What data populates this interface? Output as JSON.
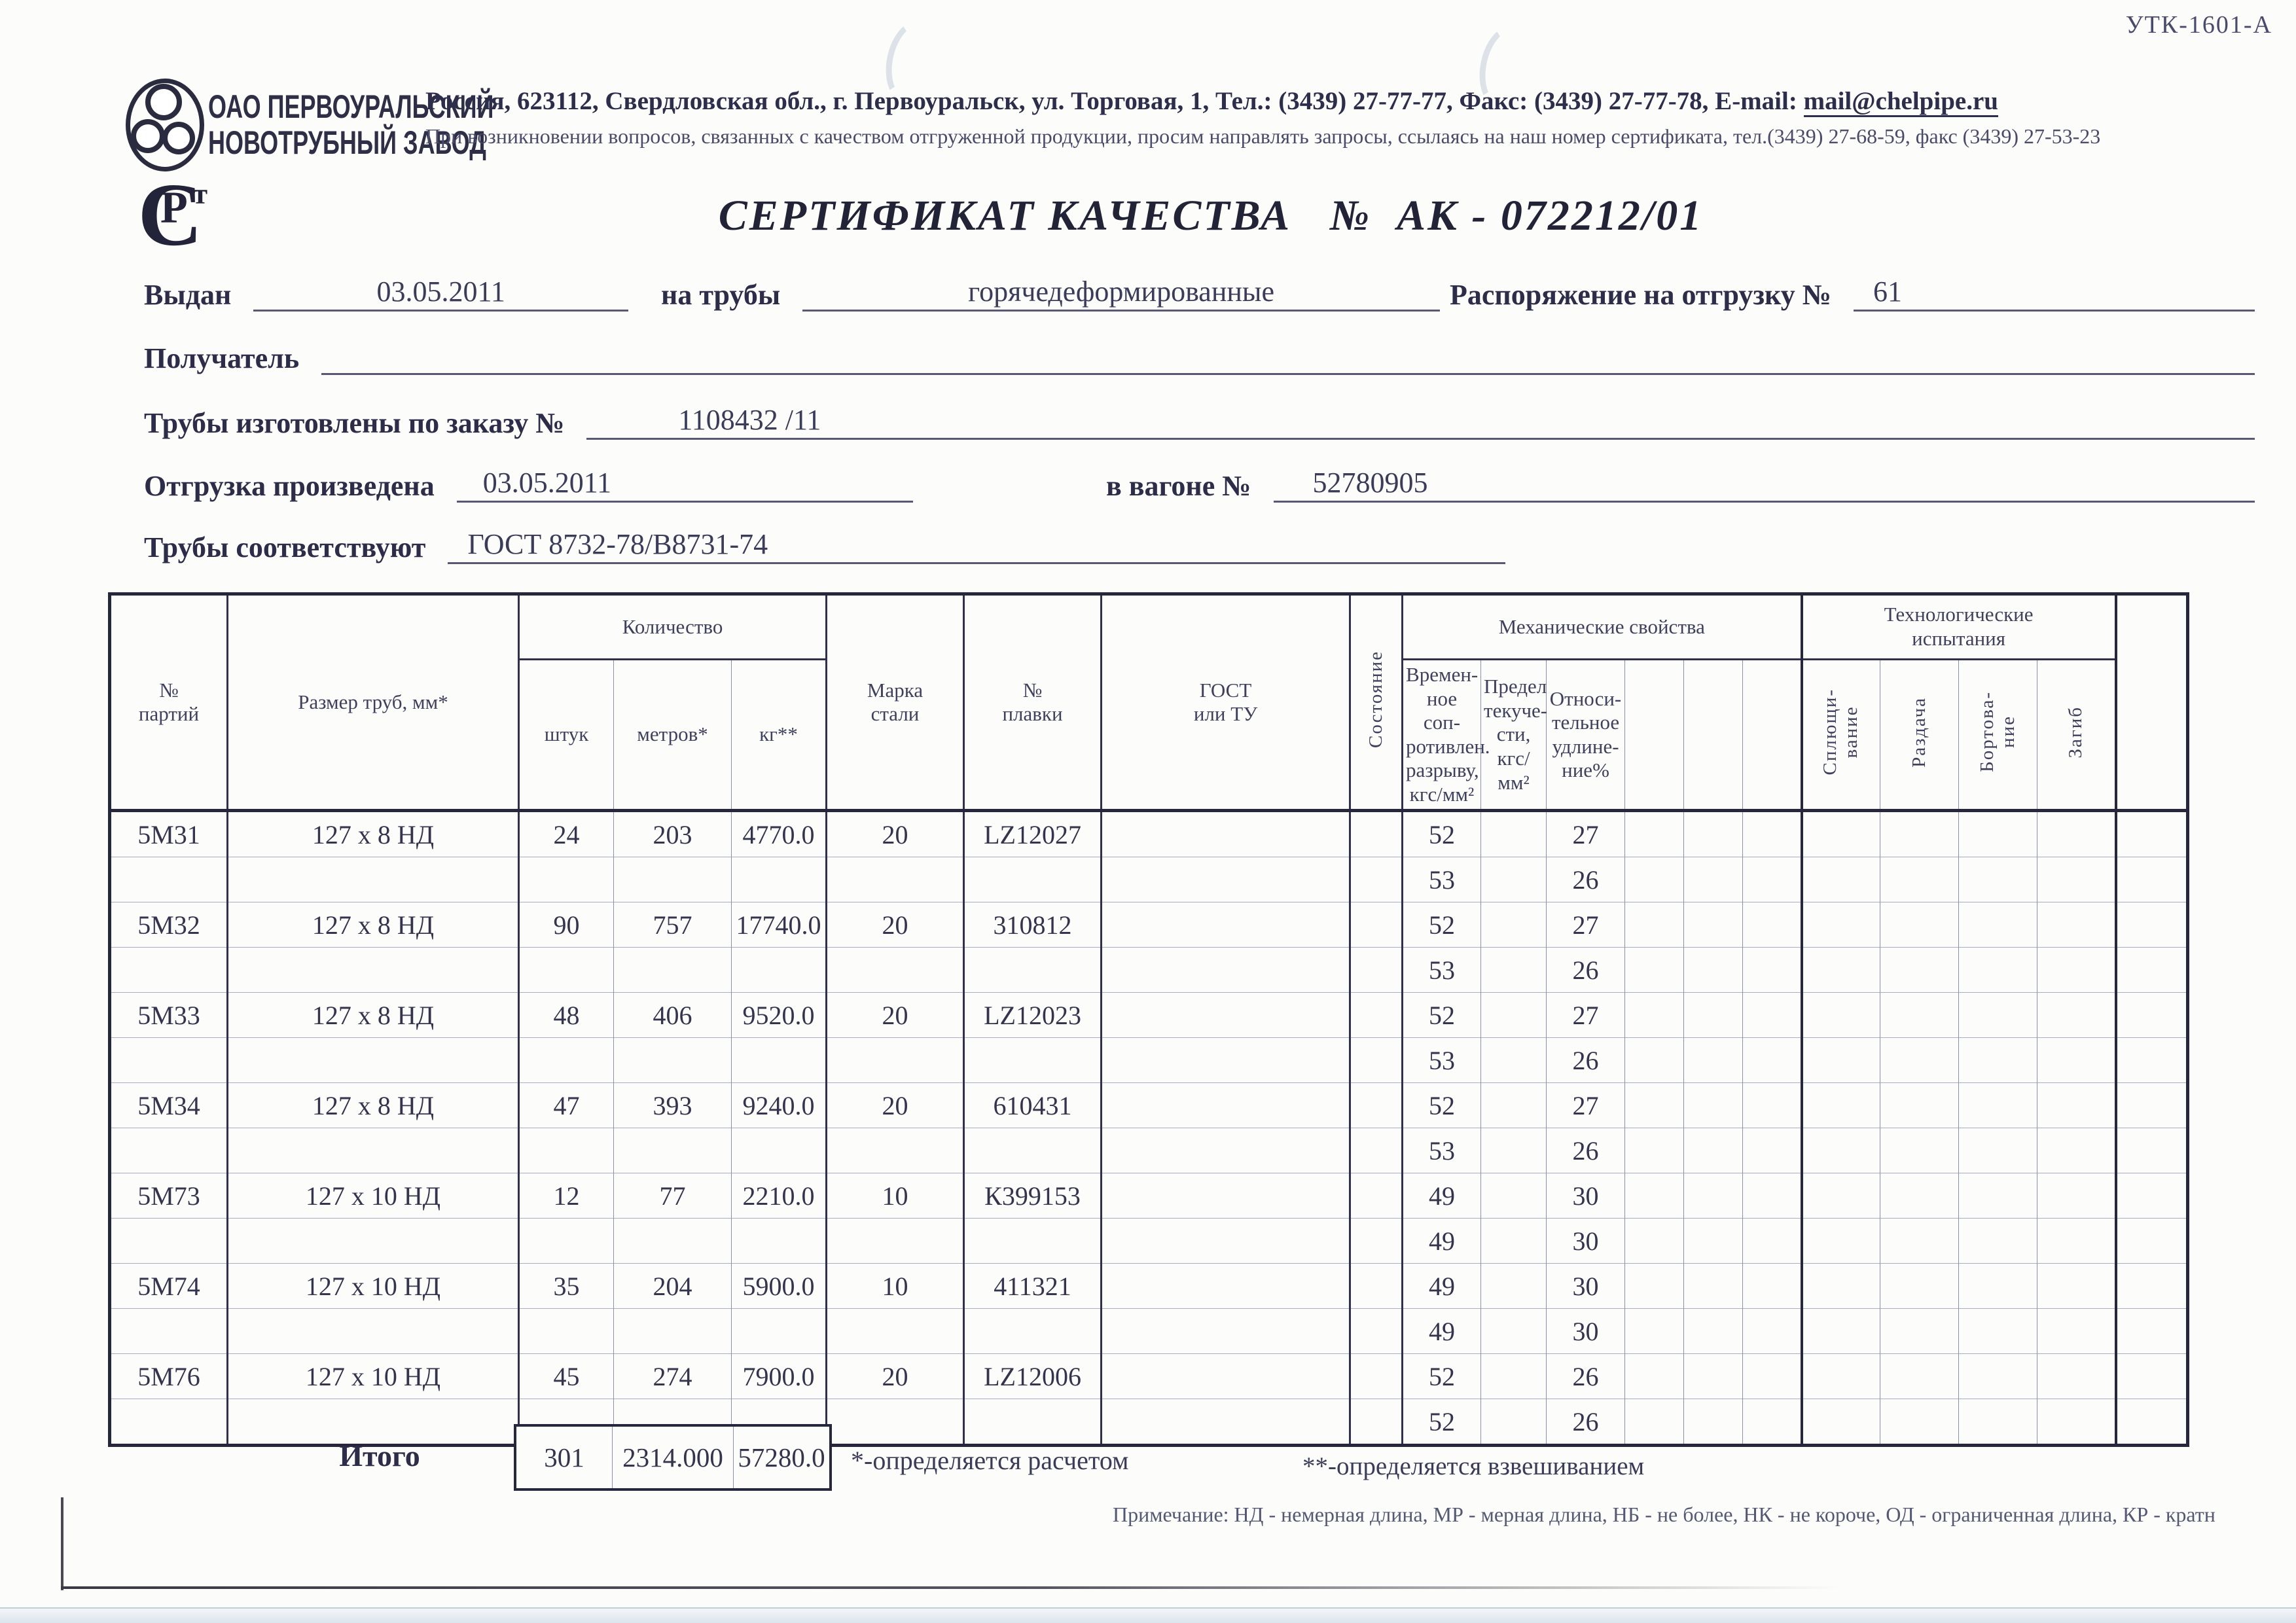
{
  "form_code": "УТК-1601-А",
  "company": {
    "name_line1": "ОАО ПЕРВОУРАЛЬСКИЙ",
    "name_line2": "НОВОТРУБНЫЙ ЗАВОД",
    "address_pre": "Россия, 623112, Свердловская обл., г. Первоуральск, ул. Торговая, 1, Тел.: (3439) 27-77-77, Факс: (3439) 27-77-78, E-mail: ",
    "email": "mail@chelpipe.ru",
    "quality_note": "При возникновении вопросов, связанных с качеством отгруженной продукции, просим направлять запросы, ссылаясь на наш номер сертификата, тел.(3439) 27-68-59, факс (3439) 27-53-23"
  },
  "logos": {
    "rst_c": "С",
    "rst_r": "Р",
    "rst_t": "т"
  },
  "title": {
    "text": "СЕРТИФИКАТ КАЧЕСТВА",
    "number_sign": "№",
    "number": "АК - 072212/01"
  },
  "fields": {
    "issued_label": "Выдан",
    "issued_value": "03.05.2011",
    "pipes_label": "на трубы",
    "pipes_value": "горячедеформированные",
    "shipment_order_label": "Распоряжение на отгрузку №",
    "shipment_order_value": "61",
    "receiver_label": "Получатель",
    "receiver_value": "",
    "made_by_order_label": "Трубы изготовлены по заказу №",
    "made_by_order_value": "1108432  /11",
    "shipped_label": "Отгрузка произведена",
    "shipped_value": "03.05.2011",
    "wagon_label": "в вагоне №",
    "wagon_value": "52780905",
    "conform_label": "Трубы соответствуют",
    "conform_value": "ГОСТ 8732-78/В8731-74"
  },
  "table": {
    "header": {
      "party": "№\nпартий",
      "size": "Размер труб, мм*",
      "qty_group": "Количество",
      "qty_pcs": "штук",
      "qty_m": "метров*",
      "qty_kg": "кг**",
      "grade": "Марка\nстали",
      "heat": "№\nплавки",
      "gost": "ГОСТ\nили ТУ",
      "state": "Состояние",
      "mech_group": "Механические свойства",
      "tensile": "Времен-\nное соп-\nротивлен.\nразрыву,\nкгс/мм²",
      "yield": "Предел\nтекуче-\nсти,\nкгс/мм²",
      "elong": "Относи-\nтельное\nудлине-\nние%",
      "tech_group": "Технологические\nиспытания",
      "flatten": "Сплющи-\nвание",
      "expand": "Раздача",
      "flange": "Бортова-\nние",
      "bend": "Загиб"
    },
    "rows": [
      [
        "5М31",
        "127 x 8 НД",
        "24",
        "203",
        "4770.0",
        "20",
        "LZ12027",
        "",
        "",
        "52",
        "",
        "27",
        "",
        "",
        "",
        "",
        "",
        "",
        "",
        ""
      ],
      [
        "",
        "",
        "",
        "",
        "",
        "",
        "",
        "",
        "",
        "53",
        "",
        "26",
        "",
        "",
        "",
        "",
        "",
        "",
        "",
        ""
      ],
      [
        "5М32",
        "127 x 8 НД",
        "90",
        "757",
        "17740.0",
        "20",
        "310812",
        "",
        "",
        "52",
        "",
        "27",
        "",
        "",
        "",
        "",
        "",
        "",
        "",
        ""
      ],
      [
        "",
        "",
        "",
        "",
        "",
        "",
        "",
        "",
        "",
        "53",
        "",
        "26",
        "",
        "",
        "",
        "",
        "",
        "",
        "",
        ""
      ],
      [
        "5М33",
        "127 x 8 НД",
        "48",
        "406",
        "9520.0",
        "20",
        "LZ12023",
        "",
        "",
        "52",
        "",
        "27",
        "",
        "",
        "",
        "",
        "",
        "",
        "",
        ""
      ],
      [
        "",
        "",
        "",
        "",
        "",
        "",
        "",
        "",
        "",
        "53",
        "",
        "26",
        "",
        "",
        "",
        "",
        "",
        "",
        "",
        ""
      ],
      [
        "5М34",
        "127 x 8 НД",
        "47",
        "393",
        "9240.0",
        "20",
        "610431",
        "",
        "",
        "52",
        "",
        "27",
        "",
        "",
        "",
        "",
        "",
        "",
        "",
        ""
      ],
      [
        "",
        "",
        "",
        "",
        "",
        "",
        "",
        "",
        "",
        "53",
        "",
        "26",
        "",
        "",
        "",
        "",
        "",
        "",
        "",
        ""
      ],
      [
        "5М73",
        "127 x 10 НД",
        "12",
        "77",
        "2210.0",
        "10",
        "К399153",
        "",
        "",
        "49",
        "",
        "30",
        "",
        "",
        "",
        "",
        "",
        "",
        "",
        ""
      ],
      [
        "",
        "",
        "",
        "",
        "",
        "",
        "",
        "",
        "",
        "49",
        "",
        "30",
        "",
        "",
        "",
        "",
        "",
        "",
        "",
        ""
      ],
      [
        "5М74",
        "127 x 10 НД",
        "35",
        "204",
        "5900.0",
        "10",
        "411321",
        "",
        "",
        "49",
        "",
        "30",
        "",
        "",
        "",
        "",
        "",
        "",
        "",
        ""
      ],
      [
        "",
        "",
        "",
        "",
        "",
        "",
        "",
        "",
        "",
        "49",
        "",
        "30",
        "",
        "",
        "",
        "",
        "",
        "",
        "",
        ""
      ],
      [
        "5М76",
        "127 x 10 НД",
        "45",
        "274",
        "7900.0",
        "20",
        "LZ12006",
        "",
        "",
        "52",
        "",
        "26",
        "",
        "",
        "",
        "",
        "",
        "",
        "",
        ""
      ],
      [
        "",
        "",
        "",
        "",
        "",
        "",
        "",
        "",
        "",
        "52",
        "",
        "26",
        "",
        "",
        "",
        "",
        "",
        "",
        "",
        ""
      ]
    ],
    "totals": {
      "label": "Итого",
      "pieces": "301",
      "meters": "2314.000",
      "kg": "57280.0"
    }
  },
  "footnotes": {
    "calc": "*-определяется расчетом",
    "weigh": "**-определяется взвешиванием",
    "note": "Примечание: НД - немерная длина, МР - мерная длина, НБ - не более, НК - не короче, ОД - ограниченная длина, КР - кратн"
  }
}
